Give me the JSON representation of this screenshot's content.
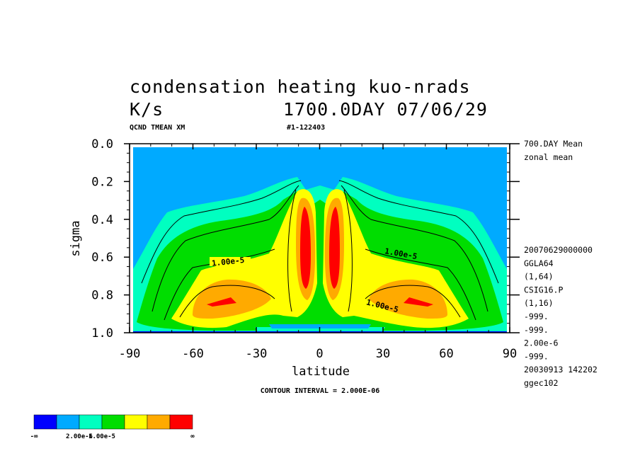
{
  "header": {
    "title_line1": "condensation heating kuo-nrads",
    "units": "K/s",
    "title_time": "1700.0DAY 07/06/29",
    "field_name": "QCND TMEAN XM",
    "run_id": "#1-122403"
  },
  "side_info": {
    "top": [
      "700.DAY Mean",
      "zonal mean"
    ],
    "middle": [
      "20070629000000",
      "GGLA64",
      "(1,64)",
      "CSIG16.P",
      "(1,16)",
      "-999.",
      "-999.",
      "2.00e-6",
      "-999.",
      "20030913 142202",
      "ggec102"
    ]
  },
  "footer": {
    "contour_interval": "CONTOUR INTERVAL = 2.000E-06"
  },
  "contour_labels": [
    "1.00e-5",
    "1.00e-5",
    "1.00e-5"
  ],
  "colors": {
    "level0": "#0000ff",
    "level1": "#00aaff",
    "level2": "#00ffc0",
    "level3": "#00dd00",
    "level4": "#ffff00",
    "level5": "#ffaa00",
    "level6": "#ff0000"
  },
  "legend": {
    "colors": [
      "#0000ff",
      "#00aaff",
      "#00ffc0",
      "#00dd00",
      "#ffff00",
      "#ffaa00",
      "#ff0000"
    ],
    "labels": [
      "-∞",
      "2.00e-6",
      "1.00e-5",
      "∞"
    ]
  },
  "chart_data": {
    "type": "heatmap",
    "title": "condensation heating kuo-nrads",
    "units": "K/s",
    "xlabel": "latitude",
    "ylabel": "sigma",
    "xlim": [
      -90,
      90
    ],
    "ylim": [
      1.0,
      0.0
    ],
    "x_ticks": [
      "-90",
      "-60",
      "-30",
      "0",
      "30",
      "60",
      "90"
    ],
    "y_ticks": [
      "0.0",
      "0.2",
      "0.4",
      "0.6",
      "0.8",
      "1.0"
    ],
    "contour_interval": 2e-06,
    "contour_levels": [
      -1e+30,
      2e-06,
      1e-05,
      1e+30
    ],
    "max_regions": [
      {
        "lat": -7,
        "sigma": 0.55,
        "level": "red"
      },
      {
        "lat": 7,
        "sigma": 0.55,
        "level": "red"
      },
      {
        "lat": -50,
        "sigma": 0.85,
        "level": "red"
      },
      {
        "lat": 50,
        "sigma": 0.85,
        "level": "red"
      }
    ]
  }
}
